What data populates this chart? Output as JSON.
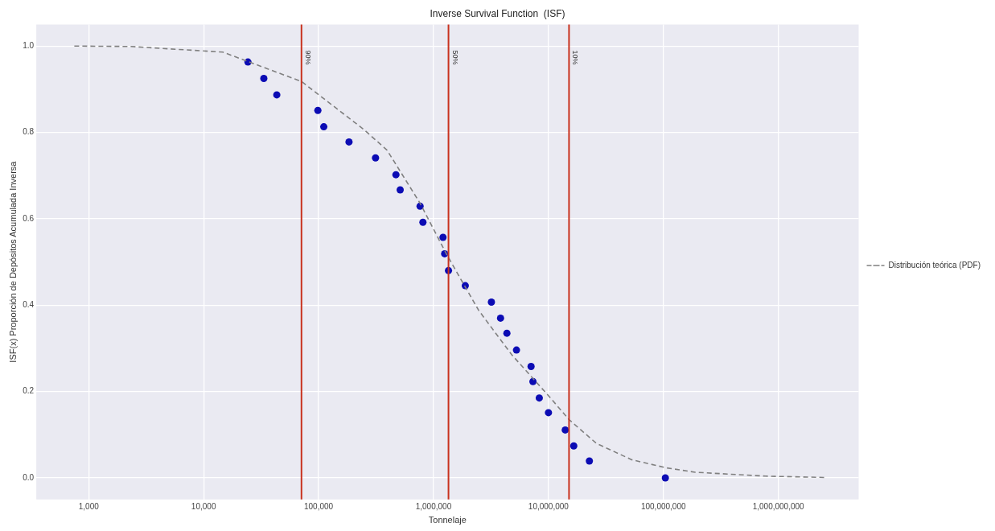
{
  "chart_data": {
    "type": "scatter",
    "title": "Inverse Survival Function  (ISF)",
    "xlabel": "Tonnelaje",
    "ylabel": "ISF(x) Proporción de Depósitos Acumulada Inversa",
    "log": "x",
    "grid": true,
    "legend": "right",
    "marker": "circle",
    "xlim": [
      350,
      5000000000
    ],
    "ylim": [
      -0.05,
      1.05
    ],
    "xticks": [
      {
        "value": 1000,
        "label": "1,000"
      },
      {
        "value": 10000,
        "label": "10,000"
      },
      {
        "value": 100000,
        "label": "100,000"
      },
      {
        "value": 1000000,
        "label": "1,000,000"
      },
      {
        "value": 10000000,
        "label": "10,000,000"
      },
      {
        "value": 100000000,
        "label": "100,000,000"
      },
      {
        "value": 1000000000,
        "label": "1,000,000,000"
      }
    ],
    "yticks": [
      {
        "value": 0,
        "label": "0.0"
      },
      {
        "value": 0.2,
        "label": "0.2"
      },
      {
        "value": 0.4,
        "label": "0.4"
      },
      {
        "value": 0.6,
        "label": "0.6"
      },
      {
        "value": 0.8,
        "label": "0.8"
      },
      {
        "value": 1,
        "label": "1.0"
      }
    ],
    "series": [
      {
        "type": "line",
        "name": "Distribución teórica (PDF)",
        "color": "#808080",
        "line_style": "dashed",
        "marker": "none",
        "x": [
          750,
          2300,
          8300,
          14700,
          71000,
          247000,
          394000,
          764000,
          1310000,
          2470000,
          4800000,
          10100000,
          15100000,
          26100000,
          53000000,
          107000000,
          189000000,
          776000000,
          2500000000
        ],
        "values": [
          1.0,
          0.999,
          0.99,
          0.986,
          0.918,
          0.807,
          0.759,
          0.636,
          0.516,
          0.388,
          0.285,
          0.189,
          0.135,
          0.08,
          0.042,
          0.023,
          0.013,
          0.004,
          0.001
        ]
      },
      {
        "color": "#0c0cb4",
        "x": [
          24300,
          33400,
          43300,
          98600,
          111000,
          184000,
          313000,
          471000,
          513000,
          764000,
          809000,
          1210000,
          1250000,
          1350000,
          1890000,
          3190000,
          3830000,
          4350000,
          5270000,
          7060000,
          7330000,
          8320000,
          10000000,
          14000000,
          16600000,
          22700000,
          104000000
        ],
        "values": [
          0.963,
          0.925,
          0.887,
          0.851,
          0.813,
          0.778,
          0.741,
          0.702,
          0.667,
          0.629,
          0.592,
          0.557,
          0.519,
          0.48,
          0.445,
          0.407,
          0.37,
          0.335,
          0.296,
          0.258,
          0.223,
          0.185,
          0.151,
          0.111,
          0.074,
          0.039,
          0.0
        ]
      }
    ],
    "ref_lines": [
      {
        "axis": "x",
        "value": 71000,
        "color": "#c8321e"
      },
      {
        "axis": "x",
        "value": 1350000,
        "color": "#c8321e"
      },
      {
        "axis": "x",
        "value": 15100000,
        "color": "#c8321e"
      }
    ],
    "annotations": [
      {
        "text": "90%",
        "x": 71000,
        "y": 0.99
      },
      {
        "text": "50%",
        "x": 1350000,
        "y": 0.99
      },
      {
        "text": "10%",
        "x": 15100000,
        "y": 0.99
      }
    ]
  }
}
